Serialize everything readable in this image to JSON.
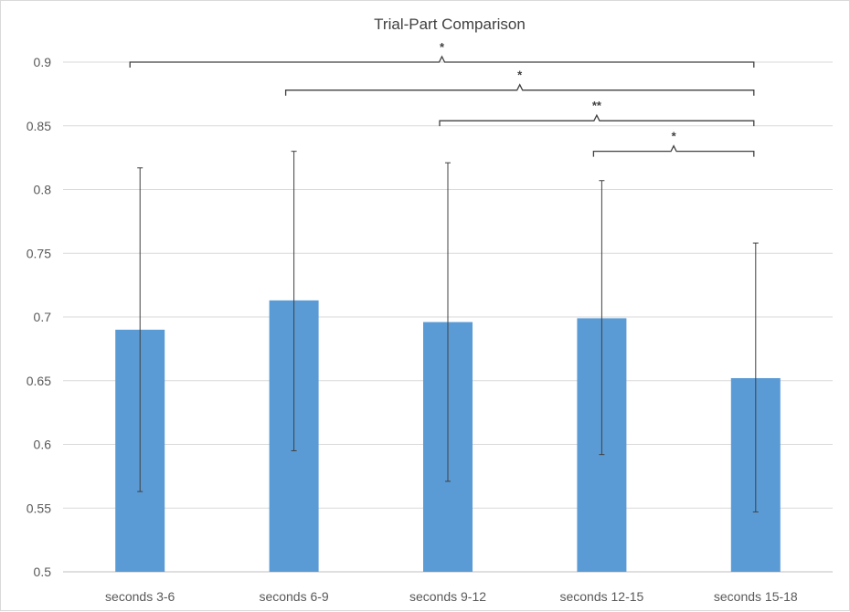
{
  "chart_data": {
    "type": "bar",
    "title": "Trial-Part Comparison",
    "xlabel": "",
    "ylabel": "",
    "categories": [
      "seconds 3-6",
      "seconds 6-9",
      "seconds 9-12",
      "seconds 12-15",
      "seconds 15-18"
    ],
    "values": [
      0.69,
      0.713,
      0.696,
      0.699,
      0.652
    ],
    "error_low": [
      0.563,
      0.595,
      0.571,
      0.592,
      0.547
    ],
    "error_high": [
      0.817,
      0.83,
      0.821,
      0.807,
      0.758
    ],
    "ylim": [
      0.5,
      0.9
    ],
    "yticks": [
      "0.5",
      "0.55",
      "0.6",
      "0.65",
      "0.7",
      "0.75",
      "0.8",
      "0.85",
      "0.9"
    ],
    "ytick_values": [
      0.5,
      0.55,
      0.6,
      0.65,
      0.7,
      0.75,
      0.8,
      0.85,
      0.9
    ],
    "grid": true,
    "bar_color": "#5b9bd5",
    "significance": [
      {
        "from": 0,
        "to": 4,
        "label": "*",
        "level": 0.9
      },
      {
        "from": 1,
        "to": 4,
        "label": "*",
        "level": 0.878
      },
      {
        "from": 2,
        "to": 4,
        "label": "**",
        "level": 0.854
      },
      {
        "from": 3,
        "to": 4,
        "label": "*",
        "level": 0.83
      }
    ]
  }
}
